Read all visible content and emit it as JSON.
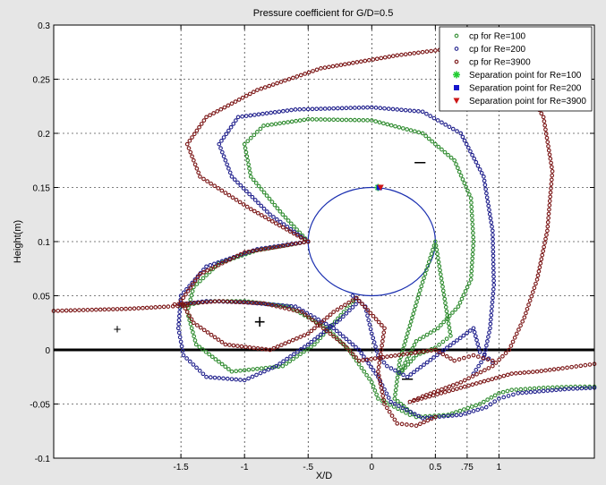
{
  "chart_data": {
    "type": "scatter",
    "title": "Pressure coefficient for G/D=0.5",
    "xlabel": "X/D",
    "ylabel": "Height(m)",
    "xlim": [
      -2.5,
      1.75
    ],
    "ylim": [
      -0.1,
      0.3
    ],
    "grid": true,
    "legend_position": "top-right",
    "x_ticks": [
      -1.5,
      -1,
      -0.5,
      0,
      0.5,
      0.75,
      1
    ],
    "x_tick_labels": [
      "-1.5",
      "-1",
      "-.5",
      "0",
      "0.5",
      ".75",
      "1"
    ],
    "y_ticks": [
      -0.1,
      -0.05,
      0,
      0.05,
      0.1,
      0.15,
      0.2,
      0.25,
      0.3
    ],
    "y_tick_labels": [
      "-0.1",
      "-0.05",
      "0",
      "0.05",
      "0.1",
      "0.15",
      "0.2",
      "0.25",
      "0.3"
    ],
    "cylinder": {
      "center": [
        0,
        0.1
      ],
      "radius_x": 0.5,
      "radius_y": 0.05
    },
    "ground_line_y": 0,
    "annotations": [
      {
        "text": "+",
        "x": -2.0,
        "y": 0.015,
        "size": "small"
      },
      {
        "text": "+",
        "x": -0.88,
        "y": 0.02,
        "size": "large"
      },
      {
        "text": "–",
        "x": 0.38,
        "y": 0.168,
        "size": "large"
      },
      {
        "text": "–",
        "x": 0.28,
        "y": -0.032,
        "size": "large"
      }
    ],
    "series": [
      {
        "name": "cp for Re=100",
        "marker": "circle",
        "color": "#2e8b2e",
        "points": [
          [
            -0.5,
            0.1
          ],
          [
            -0.7,
            0.125
          ],
          [
            -0.95,
            0.16
          ],
          [
            -1.0,
            0.19
          ],
          [
            -0.85,
            0.207
          ],
          [
            -0.5,
            0.213
          ],
          [
            0.0,
            0.212
          ],
          [
            0.4,
            0.2
          ],
          [
            0.65,
            0.175
          ],
          [
            0.78,
            0.14
          ],
          [
            0.8,
            0.1
          ],
          [
            0.78,
            0.065
          ],
          [
            0.68,
            0.04
          ],
          [
            0.52,
            0.02
          ],
          [
            0.35,
            0.008
          ],
          [
            0.22,
            -0.022
          ],
          [
            0.35,
            -0.005
          ],
          [
            0.5,
            0.002
          ],
          [
            0.62,
            0.013
          ],
          [
            0.5,
            0.1
          ],
          [
            0.38,
            0.055
          ],
          [
            0.22,
            -0.01
          ],
          [
            0.18,
            -0.045
          ],
          [
            0.35,
            -0.062
          ],
          [
            0.6,
            -0.06
          ],
          [
            0.85,
            -0.05
          ],
          [
            1.0,
            -0.04
          ],
          [
            1.1,
            -0.037
          ],
          [
            1.35,
            -0.035
          ],
          [
            1.6,
            -0.034
          ],
          [
            1.75,
            -0.034
          ],
          [
            -0.5,
            0.1
          ],
          [
            -0.9,
            0.092
          ],
          [
            -1.2,
            0.08
          ],
          [
            -1.4,
            0.058
          ],
          [
            -1.45,
            0.035
          ],
          [
            -1.38,
            0.005
          ],
          [
            -1.1,
            -0.02
          ],
          [
            -0.7,
            -0.015
          ],
          [
            -0.45,
            0.005
          ],
          [
            -0.22,
            0.035
          ],
          [
            -0.12,
            0.048
          ],
          [
            -1.5,
            0.04
          ],
          [
            -1.3,
            0.045
          ],
          [
            -1.0,
            0.045
          ],
          [
            -0.65,
            0.04
          ],
          [
            -0.35,
            0.02
          ],
          [
            -0.18,
            0.0
          ],
          [
            0.0,
            -0.03
          ],
          [
            0.05,
            -0.045
          ],
          [
            0.3,
            -0.06
          ]
        ]
      },
      {
        "name": "cp for Re=200",
        "marker": "circle",
        "color": "#1f1f8c",
        "points": [
          [
            -0.5,
            0.1
          ],
          [
            -0.8,
            0.125
          ],
          [
            -1.1,
            0.16
          ],
          [
            -1.2,
            0.19
          ],
          [
            -1.05,
            0.215
          ],
          [
            -0.6,
            0.222
          ],
          [
            0.0,
            0.224
          ],
          [
            0.4,
            0.22
          ],
          [
            0.7,
            0.2
          ],
          [
            0.88,
            0.16
          ],
          [
            0.95,
            0.11
          ],
          [
            0.96,
            0.06
          ],
          [
            0.93,
            0.02
          ],
          [
            0.88,
            -0.008
          ],
          [
            0.8,
            -0.022
          ],
          [
            -1.5,
            0.042
          ],
          [
            -1.3,
            0.045
          ],
          [
            -1.0,
            0.044
          ],
          [
            -0.6,
            0.04
          ],
          [
            -0.3,
            0.02
          ],
          [
            -0.1,
            0.0
          ],
          [
            0.05,
            -0.025
          ],
          [
            0.15,
            -0.048
          ],
          [
            0.4,
            -0.063
          ],
          [
            0.7,
            -0.06
          ],
          [
            0.9,
            -0.053
          ],
          [
            1.0,
            -0.045
          ],
          [
            1.15,
            -0.04
          ],
          [
            1.35,
            -0.038
          ],
          [
            1.55,
            -0.036
          ],
          [
            1.75,
            -0.035
          ],
          [
            -0.5,
            0.1
          ],
          [
            -0.9,
            0.093
          ],
          [
            -1.3,
            0.077
          ],
          [
            -1.5,
            0.05
          ],
          [
            -1.52,
            0.02
          ],
          [
            -1.48,
            -0.005
          ],
          [
            -1.3,
            -0.025
          ],
          [
            -1.0,
            -0.028
          ],
          [
            -0.75,
            -0.015
          ],
          [
            -0.5,
            0.005
          ],
          [
            -0.25,
            0.028
          ],
          [
            -0.1,
            0.045
          ],
          [
            -0.15,
            0.05
          ],
          [
            -0.05,
            0.04
          ],
          [
            0.0,
            0.015
          ],
          [
            0.05,
            -0.005
          ],
          [
            0.12,
            -0.015
          ],
          [
            0.28,
            -0.025
          ],
          [
            0.8,
            0.02
          ],
          [
            0.85,
            -0.002
          ],
          [
            0.92,
            -0.008
          ],
          [
            0.95,
            -0.012
          ]
        ]
      },
      {
        "name": "cp for Re=3900",
        "marker": "circle",
        "color": "#7a1414",
        "points": [
          [
            -2.5,
            0.036
          ],
          [
            -2.2,
            0.037
          ],
          [
            -1.9,
            0.038
          ],
          [
            -1.6,
            0.04
          ],
          [
            -1.45,
            0.041
          ],
          [
            -0.5,
            0.1
          ],
          [
            -0.95,
            0.13
          ],
          [
            -1.35,
            0.16
          ],
          [
            -1.45,
            0.19
          ],
          [
            -1.3,
            0.215
          ],
          [
            -0.9,
            0.24
          ],
          [
            -0.4,
            0.26
          ],
          [
            0.2,
            0.272
          ],
          [
            0.6,
            0.278
          ],
          [
            0.9,
            0.275
          ],
          [
            1.15,
            0.255
          ],
          [
            1.35,
            0.215
          ],
          [
            1.42,
            0.165
          ],
          [
            1.38,
            0.11
          ],
          [
            1.3,
            0.065
          ],
          [
            1.2,
            0.03
          ],
          [
            1.08,
            0.0
          ],
          [
            0.95,
            -0.015
          ],
          [
            0.7,
            -0.03
          ],
          [
            0.4,
            -0.043
          ],
          [
            0.3,
            -0.048
          ],
          [
            1.1,
            -0.022
          ],
          [
            1.3,
            -0.02
          ],
          [
            1.5,
            -0.017
          ],
          [
            1.75,
            -0.013
          ],
          [
            -0.5,
            0.1
          ],
          [
            -1.0,
            0.09
          ],
          [
            -1.35,
            0.07
          ],
          [
            -1.5,
            0.045
          ],
          [
            -1.4,
            0.025
          ],
          [
            -1.15,
            0.005
          ],
          [
            -0.8,
            0.0
          ],
          [
            -0.5,
            0.015
          ],
          [
            -0.3,
            0.035
          ],
          [
            -0.12,
            0.048
          ],
          [
            0.1,
            0.02
          ],
          [
            0.05,
            -0.02
          ],
          [
            0.1,
            -0.05
          ],
          [
            0.2,
            -0.068
          ],
          [
            0.35,
            -0.07
          ],
          [
            0.5,
            -0.062
          ],
          [
            -1.55,
            0.042
          ],
          [
            -1.2,
            0.045
          ],
          [
            -0.85,
            0.043
          ],
          [
            -0.55,
            0.035
          ],
          [
            -0.38,
            0.02
          ],
          [
            -0.22,
            0.005
          ],
          [
            -0.1,
            -0.01
          ],
          [
            0.5,
            0.0
          ],
          [
            0.65,
            -0.01
          ],
          [
            0.8,
            -0.005
          ],
          [
            0.95,
            -0.01
          ]
        ]
      },
      {
        "name": "Separation point for Re=100",
        "marker": "star",
        "color": "#22cc33",
        "points": [
          [
            0.05,
            0.15
          ]
        ]
      },
      {
        "name": "Separation point for Re=200",
        "marker": "square",
        "color": "#1515cc",
        "points": [
          [
            0.06,
            0.15
          ]
        ]
      },
      {
        "name": "Separation point for Re=3900",
        "marker": "triangle-down",
        "color": "#cc1515",
        "points": [
          [
            0.07,
            0.15
          ]
        ]
      }
    ]
  }
}
